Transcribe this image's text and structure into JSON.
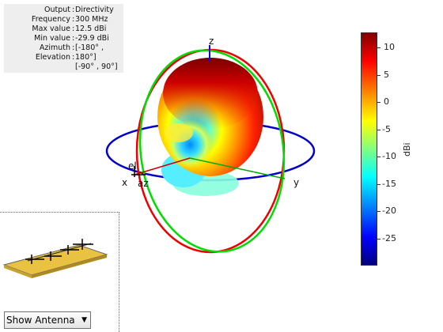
{
  "info": {
    "rows": [
      {
        "label": "Output",
        "value": "Directivity"
      },
      {
        "label": "Frequency",
        "value": "300 MHz"
      },
      {
        "label": "Max value",
        "value": "12.5 dBi"
      },
      {
        "label": "Min value",
        "value": "-29.9 dBi"
      },
      {
        "label": "Azimuth",
        "value": "[-180° ,"
      },
      {
        "label": "Elevation",
        "value": "180°]"
      },
      {
        "label": "",
        "value": "[-90° , 90°]"
      }
    ]
  },
  "axes": {
    "x": "x",
    "y": "y",
    "z": "z",
    "el": "el",
    "az": "az"
  },
  "colorbar": {
    "unit": "dBi",
    "ticks": [
      "10",
      "5",
      "0",
      "-5",
      "-10",
      "-15",
      "-20",
      "-25"
    ],
    "colors": {
      "max": "#800000",
      "min": "#000080"
    }
  },
  "control": {
    "selected": "Show Antenna"
  },
  "colors": {
    "azimuth_ring": "#0000cc",
    "elevation_ring": "#ff0000",
    "xz_ring": "#00dd00",
    "axis_z": "#0000ff",
    "axis_x": "#cc0000",
    "axis_y": "#00aa00"
  }
}
